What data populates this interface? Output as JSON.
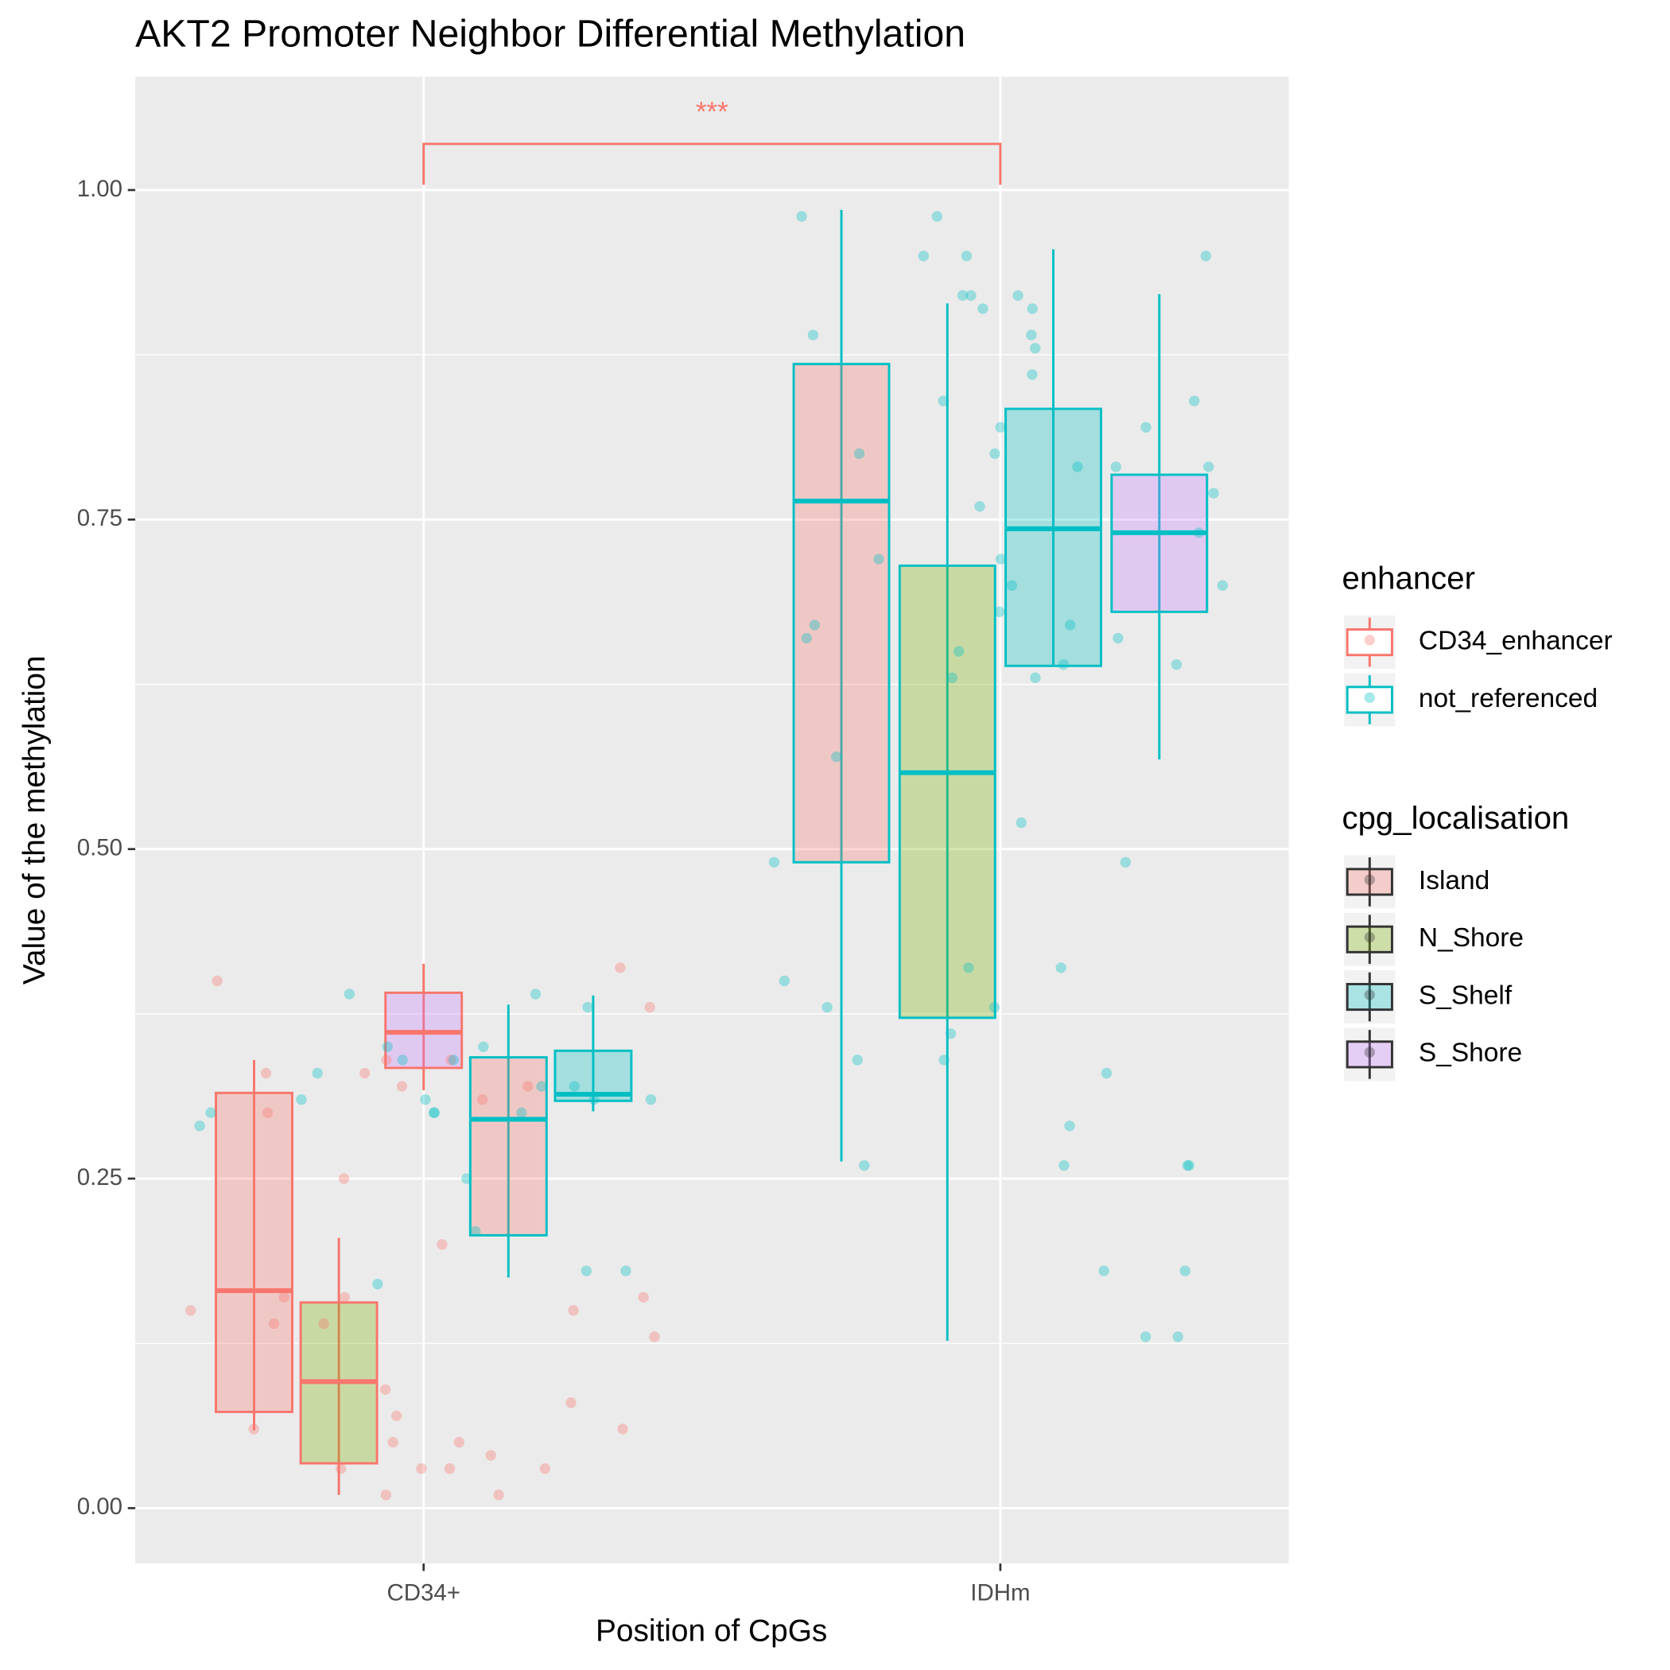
{
  "chart_data": {
    "type": "boxplot",
    "title": "AKT2 Promoter Neighbor Differential Methylation",
    "x_label": "Position of CpGs",
    "y_label": "Value of the methylation",
    "categories": [
      "CD34+",
      "IDHm"
    ],
    "ylim": [
      -0.042,
      1.086
    ],
    "yticks": [
      {
        "value": 0,
        "label": "0.00"
      },
      {
        "value": 0.25,
        "label": "0.25"
      },
      {
        "value": 0.5,
        "label": "0.50"
      },
      {
        "value": 0.75,
        "label": "0.75"
      },
      {
        "value": 1,
        "label": "1.00"
      }
    ],
    "grid": true,
    "enhancer_legend": {
      "title": "enhancer",
      "entries": [
        {
          "name": "CD34_enhancer",
          "color": "#F8766D"
        },
        {
          "name": "not_referenced",
          "color": "#00BFC4"
        }
      ]
    },
    "cpg_legend": {
      "title": "cpg_localisation",
      "entries": [
        {
          "name": "Island",
          "color": "#F8766D"
        },
        {
          "name": "N_Shore",
          "color": "#7CAE00"
        },
        {
          "name": "S_Shelf",
          "color": "#00BFC4"
        },
        {
          "name": "S_Shore",
          "color": "#C77CFF"
        }
      ]
    },
    "boxes": [
      {
        "category": "CD34+",
        "enhancer": "CD34_enhancer",
        "cpg_localisation": "Island",
        "min": 0.059,
        "q1": 0.073,
        "median": 0.165,
        "q3": 0.315,
        "max": 0.34
      },
      {
        "category": "CD34+",
        "enhancer": "CD34_enhancer",
        "cpg_localisation": "N_Shore",
        "min": 0.01,
        "q1": 0.034,
        "median": 0.096,
        "q3": 0.156,
        "max": 0.205
      },
      {
        "category": "CD34+",
        "enhancer": "CD34_enhancer",
        "cpg_localisation": "S_Shore",
        "min": 0.317,
        "q1": 0.334,
        "median": 0.361,
        "q3": 0.391,
        "max": 0.413
      },
      {
        "category": "CD34+",
        "enhancer": "not_referenced",
        "cpg_localisation": "Island",
        "min": 0.175,
        "q1": 0.207,
        "median": 0.295,
        "q3": 0.342,
        "max": 0.382
      },
      {
        "category": "CD34+",
        "enhancer": "not_referenced",
        "cpg_localisation": "S_Shelf",
        "min": 0.301,
        "q1": 0.309,
        "median": 0.314,
        "q3": 0.347,
        "max": 0.389
      },
      {
        "category": "IDHm",
        "enhancer": "not_referenced",
        "cpg_localisation": "Island",
        "min": 0.263,
        "q1": 0.49,
        "median": 0.764,
        "q3": 0.868,
        "max": 0.985
      },
      {
        "category": "IDHm",
        "enhancer": "not_referenced",
        "cpg_localisation": "N_Shore",
        "min": 0.127,
        "q1": 0.372,
        "median": 0.558,
        "q3": 0.715,
        "max": 0.914
      },
      {
        "category": "IDHm",
        "enhancer": "not_referenced",
        "cpg_localisation": "S_Shelf",
        "min": 0.639,
        "q1": 0.639,
        "median": 0.743,
        "q3": 0.834,
        "max": 0.955
      },
      {
        "category": "IDHm",
        "enhancer": "not_referenced",
        "cpg_localisation": "S_Shore",
        "min": 0.568,
        "q1": 0.68,
        "median": 0.74,
        "q3": 0.784,
        "max": 0.921
      }
    ],
    "points": [
      {
        "category": "CD34+",
        "enhancer": "CD34_enhancer",
        "values": [
          0.41,
          0.4,
          0.34,
          0.33,
          0.32,
          0.31,
          0.3,
          0.25,
          0.2,
          0.16,
          0.15,
          0.14,
          0.13,
          0.08,
          0.07,
          0.06,
          0.05,
          0.04,
          0.03,
          0.03,
          0.03,
          0.01,
          0.01,
          0.06,
          0.16,
          0.03,
          0.15,
          0.33,
          0.34,
          0.38,
          0.32,
          0.14,
          0.09,
          0.16,
          0.05
        ]
      },
      {
        "category": "CD34+",
        "enhancer": "not_referenced",
        "values": [
          0.39,
          0.34,
          0.34,
          0.33,
          0.32,
          0.32,
          0.31,
          0.3,
          0.3,
          0.29,
          0.25,
          0.21,
          0.17,
          0.18,
          0.39,
          0.35,
          0.31,
          0.31,
          0.3,
          0.31,
          0.38,
          0.3,
          0.35,
          0.18
        ]
      },
      {
        "category": "IDHm",
        "enhancer": "not_referenced",
        "values": [
          0.98,
          0.98,
          0.95,
          0.95,
          0.92,
          0.91,
          0.89,
          0.88,
          0.86,
          0.84,
          0.84,
          0.82,
          0.8,
          0.79,
          0.79,
          0.77,
          0.76,
          0.74,
          0.72,
          0.7,
          0.68,
          0.67,
          0.66,
          0.65,
          0.64,
          0.63,
          0.57,
          0.52,
          0.49,
          0.49,
          0.41,
          0.4,
          0.36,
          0.34,
          0.33,
          0.18,
          0.13,
          0.91,
          0.92,
          0.95,
          0.92,
          0.89,
          0.82,
          0.8,
          0.79,
          0.72,
          0.7,
          0.67,
          0.66,
          0.64,
          0.63,
          0.41,
          0.38,
          0.34,
          0.29,
          0.26,
          0.26,
          0.26,
          0.26,
          0.18,
          0.13,
          0.38
        ]
      }
    ],
    "significance": {
      "from": "CD34+",
      "to": "IDHm",
      "y": 1.035,
      "tip": 1.004,
      "label": "***"
    }
  }
}
